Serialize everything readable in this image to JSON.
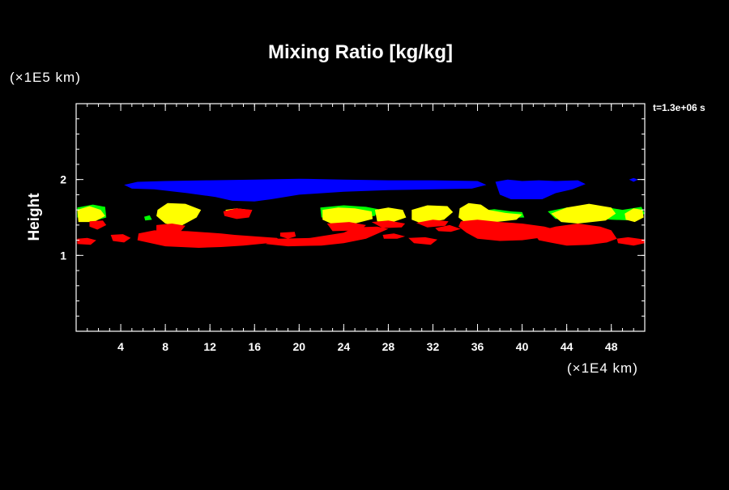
{
  "chart_data": {
    "type": "heatmap",
    "title": "Mixing Ratio [kg/kg]",
    "ylabel": "Height",
    "y_unit": "(×1E5 km)",
    "x_unit": "(×1E4 km)",
    "time_label": "t=1.3e+06 s",
    "xlim": [
      0,
      51
    ],
    "ylim": [
      0,
      3
    ],
    "x_ticks": [
      4,
      8,
      12,
      16,
      20,
      24,
      28,
      32,
      36,
      40,
      44,
      48
    ],
    "y_ticks": [
      1,
      2
    ],
    "x_minor_step": 1,
    "y_minor_step": 0.2,
    "colors": {
      "background": "#000000",
      "blue": "#0000ff",
      "green": "#00ff00",
      "yellow": "#ffff00",
      "red": "#ff0000"
    },
    "regions": [
      {
        "name": "blue-layer-main",
        "color": "blue",
        "points": [
          [
            4.3,
            1.93
          ],
          [
            5.5,
            1.97
          ],
          [
            8,
            1.98
          ],
          [
            12,
            1.99
          ],
          [
            16,
            2.0
          ],
          [
            20,
            2.01
          ],
          [
            24,
            2.0
          ],
          [
            28,
            1.99
          ],
          [
            32,
            1.99
          ],
          [
            36,
            1.98
          ],
          [
            36.8,
            1.93
          ],
          [
            35.5,
            1.88
          ],
          [
            32,
            1.87
          ],
          [
            28,
            1.86
          ],
          [
            24,
            1.84
          ],
          [
            20,
            1.8
          ],
          [
            17.5,
            1.74
          ],
          [
            16,
            1.71
          ],
          [
            14,
            1.72
          ],
          [
            12.5,
            1.77
          ],
          [
            10,
            1.82
          ],
          [
            7,
            1.87
          ],
          [
            5,
            1.88
          ]
        ]
      },
      {
        "name": "blue-layer-east",
        "color": "blue",
        "points": [
          [
            37.6,
            1.97
          ],
          [
            38.7,
            2.0
          ],
          [
            40,
            1.98
          ],
          [
            41.5,
            1.99
          ],
          [
            43,
            1.98
          ],
          [
            45,
            1.99
          ],
          [
            45.7,
            1.94
          ],
          [
            44.5,
            1.87
          ],
          [
            43,
            1.82
          ],
          [
            41.8,
            1.74
          ],
          [
            40.5,
            1.74
          ],
          [
            39,
            1.74
          ],
          [
            38,
            1.8
          ]
        ]
      },
      {
        "name": "blue-speck",
        "color": "blue",
        "points": [
          [
            49.6,
            2.0
          ],
          [
            50.0,
            2.02
          ],
          [
            50.4,
            2.0
          ],
          [
            50.0,
            1.97
          ]
        ]
      },
      {
        "name": "green-w1",
        "color": "green",
        "points": [
          [
            0.1,
            1.63
          ],
          [
            1.5,
            1.67
          ],
          [
            2.6,
            1.64
          ],
          [
            2.7,
            1.5
          ],
          [
            2.0,
            1.47
          ],
          [
            0.1,
            1.5
          ]
        ]
      },
      {
        "name": "green-w2",
        "color": "green",
        "points": [
          [
            6.1,
            1.51
          ],
          [
            6.6,
            1.53
          ],
          [
            6.8,
            1.47
          ],
          [
            6.2,
            1.46
          ]
        ]
      },
      {
        "name": "green-e1",
        "color": "green",
        "points": [
          [
            21.9,
            1.63
          ],
          [
            24,
            1.66
          ],
          [
            26,
            1.64
          ],
          [
            27.1,
            1.61
          ],
          [
            26.8,
            1.52
          ],
          [
            24,
            1.48
          ],
          [
            22,
            1.5
          ]
        ]
      },
      {
        "name": "green-e2",
        "color": "green",
        "points": [
          [
            36,
            1.58
          ],
          [
            37.5,
            1.61
          ],
          [
            39,
            1.58
          ],
          [
            40,
            1.57
          ],
          [
            40.2,
            1.5
          ],
          [
            38,
            1.49
          ],
          [
            36.5,
            1.5
          ]
        ]
      },
      {
        "name": "green-e3",
        "color": "green",
        "points": [
          [
            42.3,
            1.58
          ],
          [
            44,
            1.63
          ],
          [
            46.5,
            1.66
          ],
          [
            49,
            1.6
          ],
          [
            50.7,
            1.64
          ],
          [
            51,
            1.55
          ],
          [
            50,
            1.46
          ],
          [
            48,
            1.47
          ],
          [
            46,
            1.5
          ],
          [
            43,
            1.48
          ]
        ]
      },
      {
        "name": "yellow-1",
        "color": "yellow",
        "points": [
          [
            0.1,
            1.6
          ],
          [
            1.2,
            1.65
          ],
          [
            2.2,
            1.6
          ],
          [
            2.6,
            1.52
          ],
          [
            1.6,
            1.44
          ],
          [
            0.2,
            1.44
          ]
        ]
      },
      {
        "name": "yellow-2",
        "color": "yellow",
        "points": [
          [
            7.3,
            1.6
          ],
          [
            8.2,
            1.69
          ],
          [
            9.8,
            1.68
          ],
          [
            11.2,
            1.6
          ],
          [
            10.8,
            1.5
          ],
          [
            9.3,
            1.38
          ],
          [
            8.0,
            1.42
          ],
          [
            7.2,
            1.52
          ]
        ]
      },
      {
        "name": "yellow-3",
        "color": "yellow",
        "points": [
          [
            13.4,
            1.6
          ],
          [
            14.4,
            1.62
          ],
          [
            15.6,
            1.6
          ],
          [
            15.4,
            1.52
          ],
          [
            14.4,
            1.5
          ],
          [
            13.5,
            1.54
          ]
        ]
      },
      {
        "name": "yellow-4",
        "color": "yellow",
        "points": [
          [
            22.1,
            1.6
          ],
          [
            23.5,
            1.63
          ],
          [
            25,
            1.62
          ],
          [
            26.5,
            1.58
          ],
          [
            26.6,
            1.48
          ],
          [
            25,
            1.42
          ],
          [
            23,
            1.41
          ],
          [
            22.1,
            1.47
          ]
        ]
      },
      {
        "name": "yellow-5",
        "color": "yellow",
        "points": [
          [
            26.8,
            1.6
          ],
          [
            28,
            1.63
          ],
          [
            29.3,
            1.6
          ],
          [
            29.6,
            1.5
          ],
          [
            28.2,
            1.43
          ],
          [
            27,
            1.45
          ]
        ]
      },
      {
        "name": "yellow-6",
        "color": "yellow",
        "points": [
          [
            30.1,
            1.6
          ],
          [
            31.5,
            1.66
          ],
          [
            33.3,
            1.65
          ],
          [
            33.8,
            1.57
          ],
          [
            33,
            1.47
          ],
          [
            31,
            1.42
          ],
          [
            30.1,
            1.47
          ]
        ]
      },
      {
        "name": "yellow-7",
        "color": "yellow",
        "points": [
          [
            34.4,
            1.62
          ],
          [
            35.2,
            1.69
          ],
          [
            36.3,
            1.67
          ],
          [
            37,
            1.6
          ],
          [
            38.5,
            1.56
          ],
          [
            40,
            1.54
          ],
          [
            39.5,
            1.47
          ],
          [
            37,
            1.43
          ],
          [
            35,
            1.42
          ],
          [
            34.3,
            1.5
          ]
        ]
      },
      {
        "name": "yellow-8",
        "color": "yellow",
        "points": [
          [
            42.6,
            1.55
          ],
          [
            44,
            1.63
          ],
          [
            46,
            1.68
          ],
          [
            48,
            1.63
          ],
          [
            48.4,
            1.55
          ],
          [
            47.5,
            1.46
          ],
          [
            45,
            1.42
          ],
          [
            43.5,
            1.44
          ]
        ]
      },
      {
        "name": "yellow-9",
        "color": "yellow",
        "points": [
          [
            49.2,
            1.55
          ],
          [
            50,
            1.62
          ],
          [
            50.8,
            1.6
          ],
          [
            50.9,
            1.5
          ],
          [
            50.1,
            1.44
          ],
          [
            49.3,
            1.47
          ]
        ]
      },
      {
        "name": "red-1",
        "color": "red",
        "points": [
          [
            1.2,
            1.45
          ],
          [
            2.4,
            1.46
          ],
          [
            2.7,
            1.4
          ],
          [
            1.9,
            1.34
          ],
          [
            1.2,
            1.38
          ]
        ]
      },
      {
        "name": "red-2",
        "color": "red",
        "points": [
          [
            0.1,
            1.22
          ],
          [
            1.0,
            1.23
          ],
          [
            1.8,
            1.2
          ],
          [
            1.3,
            1.14
          ],
          [
            0.1,
            1.15
          ]
        ]
      },
      {
        "name": "red-3",
        "color": "red",
        "points": [
          [
            3.1,
            1.27
          ],
          [
            4.2,
            1.28
          ],
          [
            4.9,
            1.23
          ],
          [
            4.3,
            1.17
          ],
          [
            3.3,
            1.19
          ]
        ]
      },
      {
        "name": "red-4",
        "color": "red",
        "points": [
          [
            7.2,
            1.4
          ],
          [
            8.6,
            1.42
          ],
          [
            9.8,
            1.39
          ],
          [
            9.4,
            1.32
          ],
          [
            8,
            1.3
          ],
          [
            7.2,
            1.33
          ]
        ]
      },
      {
        "name": "red-5",
        "color": "red",
        "points": [
          [
            13.2,
            1.58
          ],
          [
            14.4,
            1.62
          ],
          [
            15.8,
            1.6
          ],
          [
            15.5,
            1.5
          ],
          [
            14.4,
            1.48
          ],
          [
            13.3,
            1.52
          ]
        ]
      },
      {
        "name": "red-6",
        "color": "red",
        "points": [
          [
            5.6,
            1.29
          ],
          [
            7,
            1.33
          ],
          [
            10,
            1.32
          ],
          [
            13,
            1.29
          ],
          [
            14.2,
            1.27
          ],
          [
            18,
            1.23
          ],
          [
            18.5,
            1.18
          ],
          [
            15,
            1.13
          ],
          [
            13,
            1.11
          ],
          [
            11,
            1.1
          ],
          [
            8,
            1.12
          ],
          [
            5.5,
            1.2
          ]
        ]
      },
      {
        "name": "red-7",
        "color": "red",
        "points": [
          [
            18.3,
            1.3
          ],
          [
            19.6,
            1.31
          ],
          [
            19.7,
            1.25
          ],
          [
            19,
            1.22
          ],
          [
            18.3,
            1.25
          ]
        ]
      },
      {
        "name": "red-8",
        "color": "red",
        "points": [
          [
            18,
            1.22
          ],
          [
            21,
            1.23
          ],
          [
            24,
            1.3
          ],
          [
            25,
            1.37
          ],
          [
            27,
            1.38
          ],
          [
            28,
            1.35
          ],
          [
            26,
            1.22
          ],
          [
            24,
            1.16
          ],
          [
            22,
            1.13
          ],
          [
            19,
            1.12
          ],
          [
            17,
            1.15
          ]
        ]
      },
      {
        "name": "red-9",
        "color": "red",
        "points": [
          [
            22.5,
            1.42
          ],
          [
            24.5,
            1.44
          ],
          [
            26,
            1.4
          ],
          [
            25.5,
            1.33
          ],
          [
            23,
            1.32
          ]
        ]
      },
      {
        "name": "red-10",
        "color": "red",
        "points": [
          [
            26.5,
            1.44
          ],
          [
            28,
            1.46
          ],
          [
            29.5,
            1.42
          ],
          [
            29.2,
            1.37
          ],
          [
            27.5,
            1.36
          ]
        ]
      },
      {
        "name": "red-11",
        "color": "red",
        "points": [
          [
            29.8,
            1.23
          ],
          [
            31.3,
            1.24
          ],
          [
            32.4,
            1.21
          ],
          [
            31.8,
            1.14
          ],
          [
            30.3,
            1.16
          ]
        ]
      },
      {
        "name": "red-12",
        "color": "red",
        "points": [
          [
            30.5,
            1.43
          ],
          [
            32,
            1.47
          ],
          [
            33.4,
            1.45
          ],
          [
            33.1,
            1.39
          ],
          [
            31.5,
            1.37
          ]
        ]
      },
      {
        "name": "red-13",
        "color": "red",
        "points": [
          [
            32.2,
            1.36
          ],
          [
            33.5,
            1.4
          ],
          [
            34.5,
            1.35
          ],
          [
            33.6,
            1.31
          ],
          [
            32.5,
            1.32
          ]
        ]
      },
      {
        "name": "red-14",
        "color": "red",
        "points": [
          [
            34.5,
            1.45
          ],
          [
            36,
            1.47
          ],
          [
            38,
            1.44
          ],
          [
            40,
            1.42
          ],
          [
            42,
            1.38
          ],
          [
            43,
            1.34
          ],
          [
            42,
            1.24
          ],
          [
            40,
            1.2
          ],
          [
            38,
            1.19
          ],
          [
            36,
            1.22
          ],
          [
            35,
            1.3
          ],
          [
            34.3,
            1.38
          ]
        ]
      },
      {
        "name": "red-15",
        "color": "red",
        "points": [
          [
            41,
            1.3
          ],
          [
            43,
            1.38
          ],
          [
            45,
            1.42
          ],
          [
            47,
            1.38
          ],
          [
            48,
            1.33
          ],
          [
            48.5,
            1.22
          ],
          [
            47.6,
            1.17
          ],
          [
            46,
            1.14
          ],
          [
            44,
            1.13
          ],
          [
            42.5,
            1.17
          ],
          [
            41.5,
            1.2
          ]
        ]
      },
      {
        "name": "red-16",
        "color": "red",
        "points": [
          [
            48.5,
            1.22
          ],
          [
            49.5,
            1.24
          ],
          [
            51,
            1.21
          ],
          [
            51,
            1.16
          ],
          [
            50,
            1.13
          ],
          [
            48.6,
            1.16
          ]
        ]
      },
      {
        "name": "red-17",
        "color": "red",
        "points": [
          [
            27.5,
            1.27
          ],
          [
            28.5,
            1.29
          ],
          [
            29.5,
            1.25
          ],
          [
            28.8,
            1.22
          ],
          [
            27.6,
            1.22
          ]
        ]
      }
    ]
  }
}
